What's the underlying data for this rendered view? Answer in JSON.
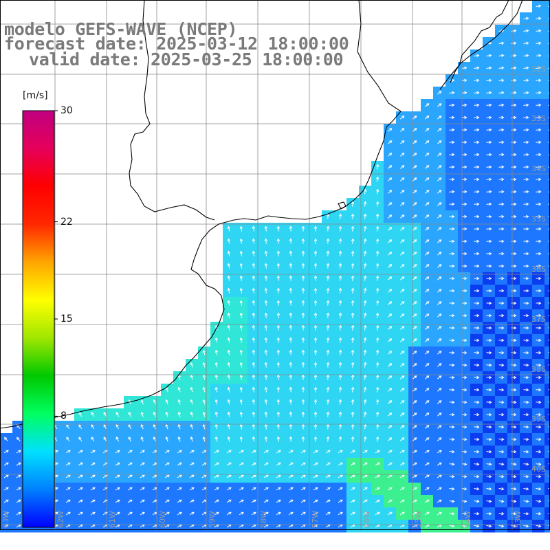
{
  "header": {
    "line1": "modelo GEFS-WAVE (NCEP)",
    "line2": "forecast date: 2025-03-12 18:00:00",
    "line3": "valid date: 2025-03-25 18:00:00"
  },
  "colorbar": {
    "unit": "[m/s]",
    "min": 0,
    "max": 30,
    "ticks": [
      "30",
      "22",
      "15",
      "8"
    ],
    "tick_values": [
      30,
      22,
      15,
      8
    ],
    "colors": [
      "#0000ff",
      "#0080ff",
      "#00e0ff",
      "#00ff60",
      "#00c800",
      "#a0e600",
      "#ffff00",
      "#ffa500",
      "#ff2800",
      "#ff0000",
      "#e6005a",
      "#c00080"
    ]
  },
  "map": {
    "lat_labels": [
      "32S",
      "33S",
      "34S",
      "35S",
      "36S",
      "37S",
      "38S",
      "39S",
      "40S"
    ],
    "lon_labels": [
      "63W",
      "62W",
      "61W",
      "60W",
      "59W",
      "58W",
      "57W",
      "56W",
      "55W",
      "54W",
      "53W"
    ],
    "field_colors": {
      "deep_blue": "#0a3cf0",
      "blue": "#1e78ff",
      "light_blue": "#2aa6ff",
      "cyan": "#2ed6f4",
      "aqua": "#30e6d6",
      "green": "#3cf090"
    }
  }
}
